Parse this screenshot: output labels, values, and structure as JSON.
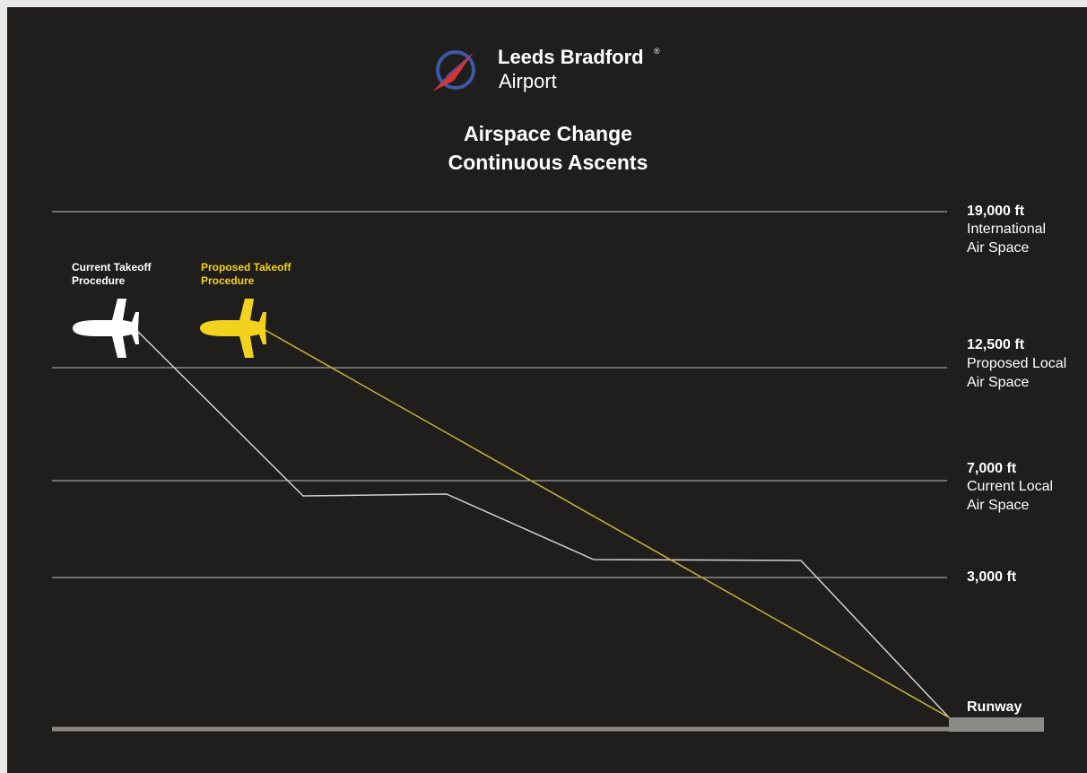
{
  "header": {
    "brand": "Leeds Bradford",
    "registered": "®",
    "subbrand": "Airport"
  },
  "title": [
    "Airspace Change",
    "Continuous Ascents"
  ],
  "legend": [
    {
      "lines": [
        "Current Takeoff",
        "Procedure"
      ]
    },
    {
      "lines": [
        "Proposed Takeoff",
        "Procedure"
      ]
    }
  ],
  "levels": [
    {
      "altitude": "19,000 ft",
      "description": [
        "International",
        "Air Space"
      ]
    },
    {
      "altitude": "12,500 ft",
      "description": [
        "Proposed Local",
        "Air Space"
      ]
    },
    {
      "altitude": "7,000 ft",
      "description": [
        "Current Local",
        "Air Space"
      ]
    },
    {
      "altitude": "3,000 ft",
      "description": []
    }
  ],
  "runway": "Runway"
}
